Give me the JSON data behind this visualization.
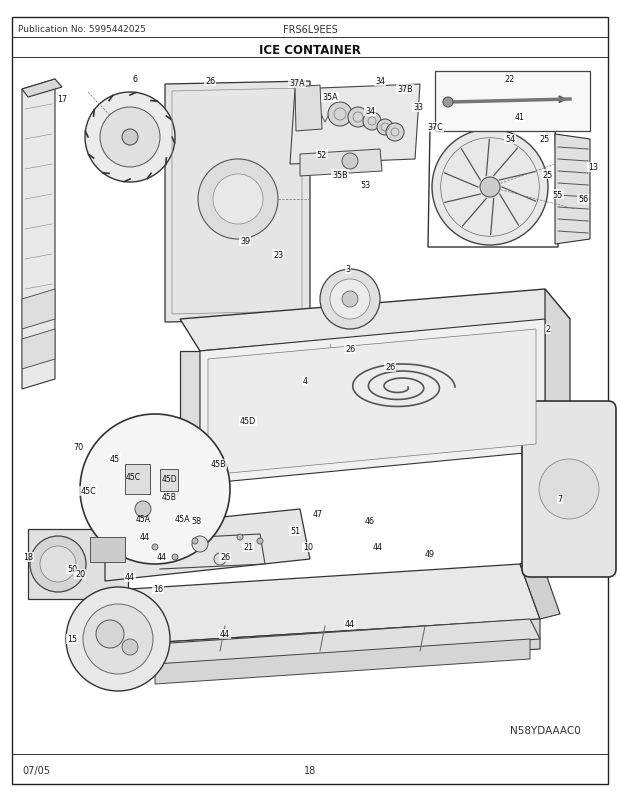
{
  "pub_no": "Publication No: 5995442025",
  "model": "FRS6L9EES",
  "section_title": "ICE CONTAINER",
  "date_code": "07/05",
  "page_number": "18",
  "diagram_id": "N58YDAAAC0",
  "bg_color": "#ffffff",
  "border_color": "#000000",
  "text_color": "#333333",
  "fig_width": 6.2,
  "fig_height": 8.03,
  "dpi": 100
}
